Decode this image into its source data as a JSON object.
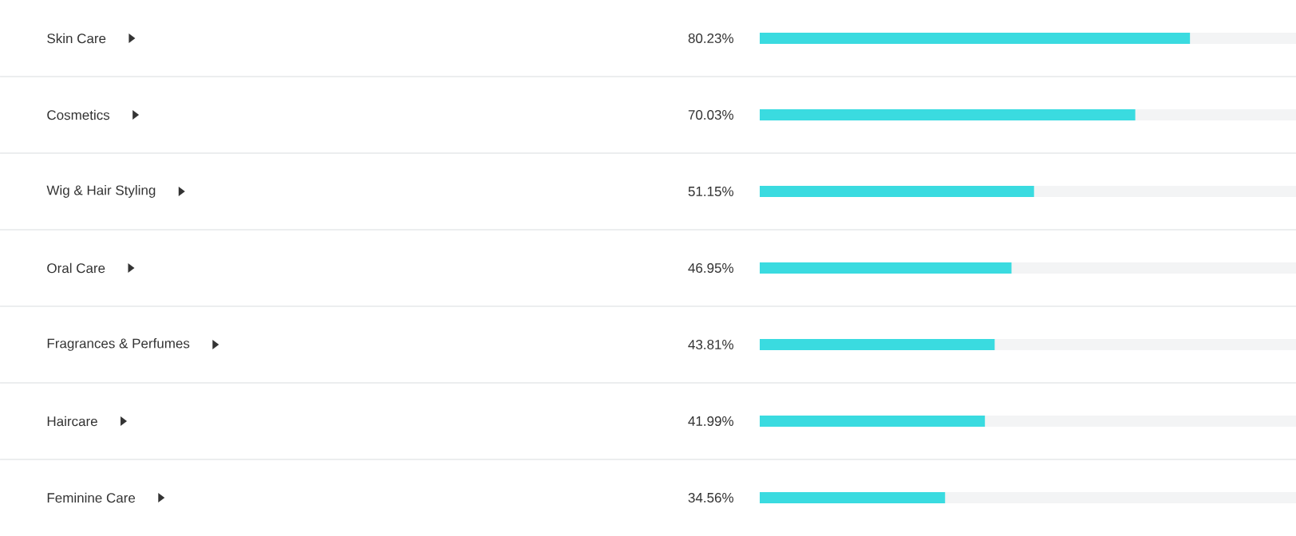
{
  "chart_data": {
    "type": "bar",
    "orientation": "horizontal",
    "categories": [
      "Skin Care",
      "Cosmetics",
      "Wig & Hair Styling",
      "Oral Care",
      "Fragrances & Perfumes",
      "Haircare",
      "Feminine Care"
    ],
    "values": [
      80.23,
      70.03,
      51.15,
      46.95,
      43.81,
      41.99,
      34.56
    ],
    "value_labels": [
      "80.23%",
      "70.03%",
      "51.15%",
      "46.95%",
      "43.81%",
      "41.99%",
      "34.56%"
    ],
    "color": "#3adbe0",
    "xlim": [
      0,
      100
    ]
  }
}
